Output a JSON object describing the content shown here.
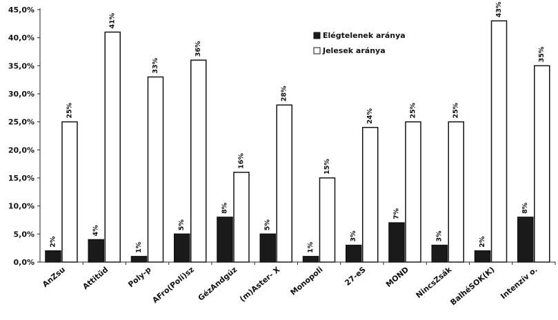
{
  "chart_data": {
    "type": "bar",
    "categories": [
      "AnZsu",
      "Attitűd",
      "Poly-p",
      "AFro(Poli)sz",
      "GézAndgúz",
      "(m)Aster- X",
      "Monopoli",
      "27-eS",
      "MOND",
      "NincsZsák",
      "BalhéSOK(K)",
      "Intenzív o."
    ],
    "series": [
      {
        "name": "Elégtelenek aránya",
        "color": "#1a1a1a",
        "values": [
          2,
          4,
          1,
          5,
          8,
          5,
          1,
          3,
          7,
          3,
          2,
          8
        ],
        "labels": [
          "2%",
          "4%",
          "1%",
          "5%",
          "8%",
          "5%",
          "1%",
          "3%",
          "7%",
          "3%",
          "2%",
          "8%"
        ]
      },
      {
        "name": "Jelesek aránya",
        "color": "#ffffff",
        "values": [
          25,
          41,
          33,
          36,
          16,
          28,
          15,
          24,
          25,
          25,
          43,
          35
        ],
        "labels": [
          "25%",
          "41%",
          "33%",
          "36%",
          "16%",
          "28%",
          "15%",
          "24%",
          "25%",
          "25%",
          "43%",
          "35%"
        ]
      }
    ],
    "ylim": [
      0,
      45
    ],
    "ytick_values": [
      0,
      5,
      10,
      15,
      20,
      25,
      30,
      35,
      40,
      45
    ],
    "ytick_labels": [
      "0,0%",
      "5,0%",
      "10,0%",
      "15,0%",
      "20,0%",
      "25,0%",
      "30,0%",
      "35,0%",
      "40,0%",
      "45,0%"
    ],
    "grid": false,
    "legend_position": "top-right"
  }
}
